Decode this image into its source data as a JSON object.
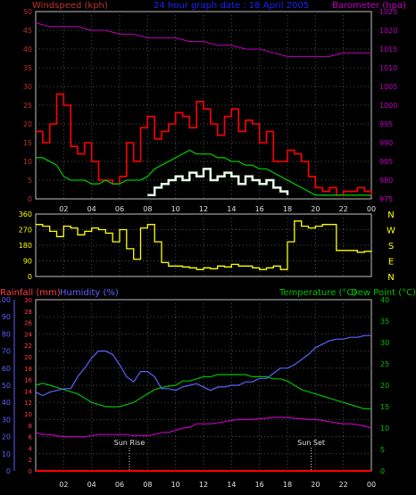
{
  "colors": {
    "background": "#000000",
    "frame": "#c0c0c0",
    "grid": "#505050",
    "wind_gust": "#ff0000",
    "wind_mean": "#00c000",
    "wind_avg": "#ffffff",
    "wind_light": "#e8ffe8",
    "pressure": "#c000c0",
    "direction": "#ffff00",
    "rain": "#ff0000",
    "humidity": "#6060ff",
    "temperature": "#00c000",
    "dewpoint": "#c000c0",
    "left_axis": "#c03030",
    "title": "#2020ff",
    "rain_axis": "#ff4040",
    "humidity_axis": "#6060ff",
    "temp_axis": "#00c000"
  },
  "panel1": {
    "left_label": "Windspeed (kph)",
    "title": "24 hour graph date : 18 April 2005",
    "right_label": "Barometer (hpa)",
    "left_ticks": [
      "50",
      "45",
      "40",
      "35",
      "30",
      "25",
      "20",
      "15",
      "10",
      "5",
      "0"
    ],
    "right_ticks": [
      "1025",
      "1020",
      "1015",
      "1010",
      "1005",
      "1000",
      "995",
      "990",
      "985",
      "980",
      "975"
    ],
    "x_ticks": [
      "02",
      "04",
      "06",
      "08",
      "10",
      "12",
      "14",
      "16",
      "18",
      "20",
      "22",
      "00"
    ]
  },
  "panel2": {
    "left_ticks": [
      "360",
      "270",
      "180",
      "90",
      "0"
    ],
    "compass": [
      "N",
      "W",
      "S",
      "E",
      "N"
    ]
  },
  "panel3": {
    "rain_label": "Rainfall (mm)",
    "humidity_label": "Humidity (%)",
    "temp_label": "Temperature (°C)",
    "dew_label": "Dew Point (°C)",
    "humidity_ticks": [
      "100",
      "90",
      "80",
      "70",
      "60",
      "50",
      "40",
      "30",
      "20",
      "10",
      "0"
    ],
    "rain_ticks": [
      "30",
      "28",
      "26",
      "24",
      "22",
      "20",
      "18",
      "16",
      "14",
      "12",
      "10",
      "8",
      "6",
      "4",
      "2",
      "0"
    ],
    "temp_ticks": [
      "40",
      "35",
      "30",
      "25",
      "20",
      "15",
      "10",
      "5",
      "0"
    ],
    "sunrise_label": "Sun Rise",
    "sunset_label": "Sun Set",
    "x_ticks": [
      "02",
      "04",
      "06",
      "08",
      "10",
      "12",
      "14",
      "16",
      "18",
      "20",
      "22",
      "00"
    ]
  },
  "chart_data": [
    {
      "type": "line",
      "title": "24 hour graph date : 18 April 2005",
      "xlabel": "",
      "ylabel": "Windspeed (kph)",
      "y2label": "Barometer (hpa)",
      "x_hours": [
        0,
        24
      ],
      "ylim": [
        0,
        50
      ],
      "y2lim": [
        975,
        1025
      ],
      "series": [
        {
          "name": "gust",
          "axis": "left",
          "hours": [
            0,
            0.5,
            1,
            1.5,
            2,
            2.5,
            3,
            3.5,
            4,
            4.5,
            5,
            5.5,
            6,
            6.5,
            7,
            7.5,
            8,
            8.5,
            9,
            9.5,
            10,
            10.5,
            11,
            11.5,
            12,
            12.5,
            13,
            13.5,
            14,
            14.5,
            15,
            15.5,
            16,
            16.5,
            17,
            17.5,
            18,
            18.5,
            19,
            19.5,
            20,
            20.5,
            21,
            21.5,
            22,
            22.5,
            23,
            23.5,
            24
          ],
          "values": [
            18,
            15,
            20,
            28,
            25,
            14,
            12,
            15,
            10,
            5,
            5,
            4,
            6,
            15,
            10,
            19,
            22,
            16,
            18,
            20,
            23,
            22,
            19,
            26,
            24,
            20,
            17,
            22,
            24,
            18,
            21,
            20,
            15,
            18,
            10,
            10,
            13,
            12,
            10,
            6,
            3,
            2,
            3,
            1,
            2,
            2,
            3,
            2,
            1
          ]
        },
        {
          "name": "mean",
          "axis": "left",
          "hours": [
            0,
            0.5,
            1,
            1.5,
            2,
            2.5,
            3,
            3.5,
            4,
            4.5,
            5,
            5.5,
            6,
            6.5,
            7,
            7.5,
            8,
            8.5,
            9,
            9.5,
            10,
            10.5,
            11,
            11.5,
            12,
            12.5,
            13,
            13.5,
            14,
            14.5,
            15,
            15.5,
            16,
            16.5,
            17,
            17.5,
            18,
            18.5,
            19,
            19.5,
            20,
            20.5,
            21,
            21.5,
            22,
            22.5,
            23,
            23.5,
            24
          ],
          "values": [
            11,
            11,
            10,
            9,
            6,
            5,
            5,
            5,
            4,
            4,
            5,
            4,
            4,
            5,
            5,
            5,
            6,
            8,
            9,
            10,
            11,
            12,
            13,
            12,
            12,
            12,
            11,
            11,
            10,
            10,
            9,
            9,
            8,
            8,
            7,
            6,
            5,
            4,
            3,
            2,
            1,
            1,
            1,
            1,
            1,
            1,
            1,
            1,
            1
          ]
        },
        {
          "name": "light",
          "axis": "left",
          "hours": [
            8,
            8.5,
            9,
            9.5,
            10,
            10.5,
            11,
            11.5,
            12,
            12.5,
            13,
            13.5,
            14,
            14.5,
            15,
            15.5,
            16,
            16.5,
            17,
            17.5,
            18
          ],
          "values": [
            1,
            3,
            4,
            5,
            6,
            5,
            7,
            6,
            8,
            5,
            6,
            7,
            6,
            4,
            6,
            5,
            4,
            5,
            3,
            2,
            1
          ]
        },
        {
          "name": "pressure",
          "axis": "right",
          "hours": [
            0,
            1,
            2,
            3,
            4,
            5,
            6,
            7,
            8,
            9,
            10,
            11,
            12,
            13,
            14,
            15,
            16,
            17,
            18,
            19,
            20,
            21,
            22,
            23,
            24
          ],
          "values": [
            1022,
            1021,
            1021,
            1021,
            1020,
            1020,
            1019,
            1019,
            1018,
            1018,
            1018,
            1017,
            1017,
            1016,
            1016,
            1015,
            1015,
            1014,
            1013,
            1013,
            1013,
            1013,
            1014,
            1014,
            1014
          ]
        }
      ]
    },
    {
      "type": "line",
      "title": "",
      "ylabel": "Wind direction",
      "ylim": [
        0,
        360
      ],
      "series": [
        {
          "name": "direction",
          "hours": [
            0,
            0.5,
            1,
            1.5,
            2,
            2.5,
            3,
            3.5,
            4,
            4.5,
            5,
            5.5,
            6,
            6.5,
            7,
            7.5,
            8,
            8.5,
            9,
            9.5,
            10,
            10.5,
            11,
            11.5,
            12,
            12.5,
            13,
            13.5,
            14,
            14.5,
            15,
            15.5,
            16,
            16.5,
            17,
            17.5,
            18,
            18.5,
            19,
            19.5,
            20,
            20.5,
            21,
            21.5,
            22,
            22.5,
            23,
            23.5,
            24
          ],
          "values": [
            300,
            290,
            260,
            230,
            290,
            280,
            240,
            260,
            280,
            270,
            250,
            200,
            270,
            160,
            100,
            280,
            300,
            200,
            80,
            60,
            60,
            55,
            50,
            40,
            50,
            45,
            60,
            55,
            70,
            60,
            60,
            50,
            40,
            50,
            60,
            40,
            200,
            320,
            290,
            280,
            290,
            300,
            300,
            150,
            150,
            150,
            140,
            145,
            150
          ]
        }
      ]
    },
    {
      "type": "line",
      "title": "",
      "ylabel": "Humidity (%)",
      "y2label": "Temperature (°C)",
      "ylim": [
        0,
        100
      ],
      "y2lim": [
        0,
        40
      ],
      "series": [
        {
          "name": "Humidity (%)",
          "axis": "humidity",
          "hours": [
            0,
            0.5,
            1,
            1.5,
            2,
            2.5,
            3,
            3.5,
            4,
            4.5,
            5,
            5.5,
            6,
            6.5,
            7,
            7.5,
            8,
            8.5,
            9,
            9.5,
            10,
            10.5,
            11,
            11.5,
            12,
            12.5,
            13,
            13.5,
            14,
            14.5,
            15,
            15.5,
            16,
            16.5,
            17,
            17.5,
            18,
            18.5,
            19,
            19.5,
            20,
            20.5,
            21,
            21.5,
            22,
            22.5,
            23,
            23.5,
            24
          ],
          "values": [
            46,
            44,
            46,
            47,
            48,
            48,
            55,
            60,
            66,
            70,
            70,
            68,
            62,
            55,
            52,
            58,
            58,
            55,
            48,
            48,
            47,
            49,
            50,
            51,
            49,
            47,
            49,
            49,
            50,
            50,
            52,
            52,
            54,
            54,
            57,
            60,
            60,
            62,
            65,
            68,
            72,
            74,
            76,
            77,
            77,
            78,
            78,
            79,
            79
          ]
        },
        {
          "name": "Temperature (°C)",
          "axis": "temp",
          "hours": [
            0,
            0.5,
            1,
            1.5,
            2,
            2.5,
            3,
            3.5,
            4,
            4.5,
            5,
            5.5,
            6,
            6.5,
            7,
            7.5,
            8,
            8.5,
            9,
            9.5,
            10,
            10.5,
            11,
            11.5,
            12,
            12.5,
            13,
            13.5,
            14,
            14.5,
            15,
            15.5,
            16,
            16.5,
            17,
            17.5,
            18,
            18.5,
            19,
            19.5,
            20,
            20.5,
            21,
            21.5,
            22,
            22.5,
            23,
            23.5,
            24
          ],
          "values": [
            20,
            20.5,
            20,
            19.5,
            19,
            18.5,
            18,
            17,
            16,
            15.5,
            15,
            15,
            15,
            15.5,
            16,
            17,
            18,
            19,
            19.5,
            19.8,
            20,
            21,
            21,
            21.5,
            22,
            22,
            22.5,
            22.5,
            22.5,
            22.5,
            22.5,
            22,
            22,
            22,
            21.5,
            21.5,
            21,
            20,
            19,
            18.5,
            18,
            17.5,
            17,
            16.5,
            16,
            15.5,
            15,
            14.5,
            14.5
          ]
        },
        {
          "name": "Dew Point (°C)",
          "axis": "temp",
          "hours": [
            0,
            0.5,
            1,
            1.5,
            2,
            2.5,
            3,
            3.5,
            4,
            4.5,
            5,
            5.5,
            6,
            6.5,
            7,
            7.5,
            8,
            8.5,
            9,
            9.5,
            10,
            10.5,
            11,
            11.5,
            12,
            12.5,
            13,
            13.5,
            14,
            14.5,
            15,
            15.5,
            16,
            16.5,
            17,
            17.5,
            18,
            18.5,
            19,
            19.5,
            20,
            20.5,
            21,
            21.5,
            22,
            22.5,
            23,
            23.5,
            24
          ],
          "values": [
            9,
            8.5,
            8.5,
            8.2,
            8,
            8,
            8,
            8,
            8.2,
            8.5,
            8.5,
            8.5,
            8.5,
            8.5,
            8.2,
            8.3,
            8.2,
            8.5,
            9,
            9,
            9.5,
            10,
            10.2,
            11,
            11,
            11,
            11.2,
            11.5,
            11.8,
            12,
            12,
            12,
            12.2,
            12.3,
            12.5,
            12.5,
            12.5,
            12.3,
            12.2,
            12,
            12,
            11.8,
            11.5,
            11.2,
            11,
            11,
            10.8,
            10.5,
            10
          ]
        },
        {
          "name": "Rainfall (mm)",
          "axis": "rain",
          "hours": [
            0,
            24
          ],
          "values": [
            0,
            0
          ]
        }
      ],
      "annotations": [
        {
          "label": "Sun Rise",
          "hour": 6.7
        },
        {
          "label": "Sun Set",
          "hour": 19.7
        }
      ]
    }
  ]
}
